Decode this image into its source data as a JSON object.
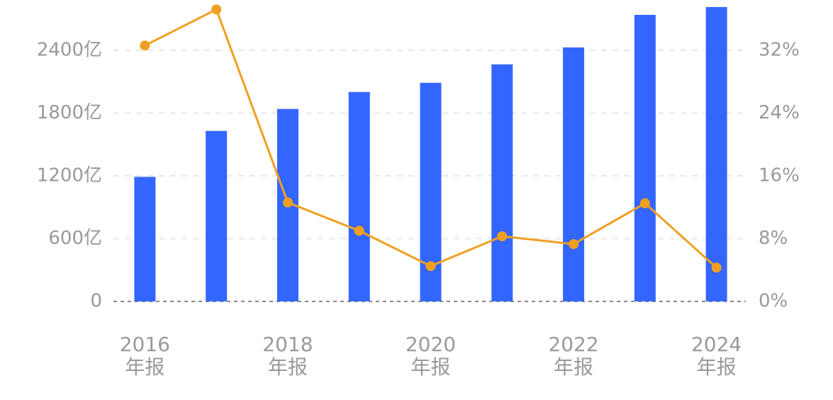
{
  "chart_data": {
    "type": "bar_line",
    "categories": [
      "2016\n年报",
      null,
      "2018\n年报",
      null,
      "2020\n年报",
      null,
      "2022\n年报",
      null,
      "2024\n年报"
    ],
    "series": [
      {
        "type": "bar",
        "color": "#3366ff",
        "values": [
          1190,
          1629,
          1839,
          2001,
          2089,
          2265,
          2427,
          2738,
          2813
        ]
      },
      {
        "type": "line",
        "axis": "y2",
        "color": "#f0a020",
        "values": [
          32.6,
          37.2,
          12.6,
          9.0,
          4.5,
          8.3,
          7.3,
          12.5,
          4.3
        ]
      }
    ],
    "ylim": [
      0,
      2880
    ],
    "yticks": [
      0,
      {
        "value": 600,
        "label": "600亿"
      },
      {
        "value": 1200,
        "label": "1200亿"
      },
      {
        "value": 1800,
        "label": "1800亿"
      },
      {
        "value": 2400,
        "label": "2400亿"
      }
    ],
    "y2lim": [
      0,
      38.4
    ],
    "y2ticks": [
      {
        "value": 0,
        "label": "0%"
      },
      {
        "value": 8,
        "label": "8%"
      },
      {
        "value": 16,
        "label": "16%"
      },
      {
        "value": 24,
        "label": "24%"
      },
      {
        "value": 32,
        "label": "32%"
      }
    ],
    "grid": true
  }
}
